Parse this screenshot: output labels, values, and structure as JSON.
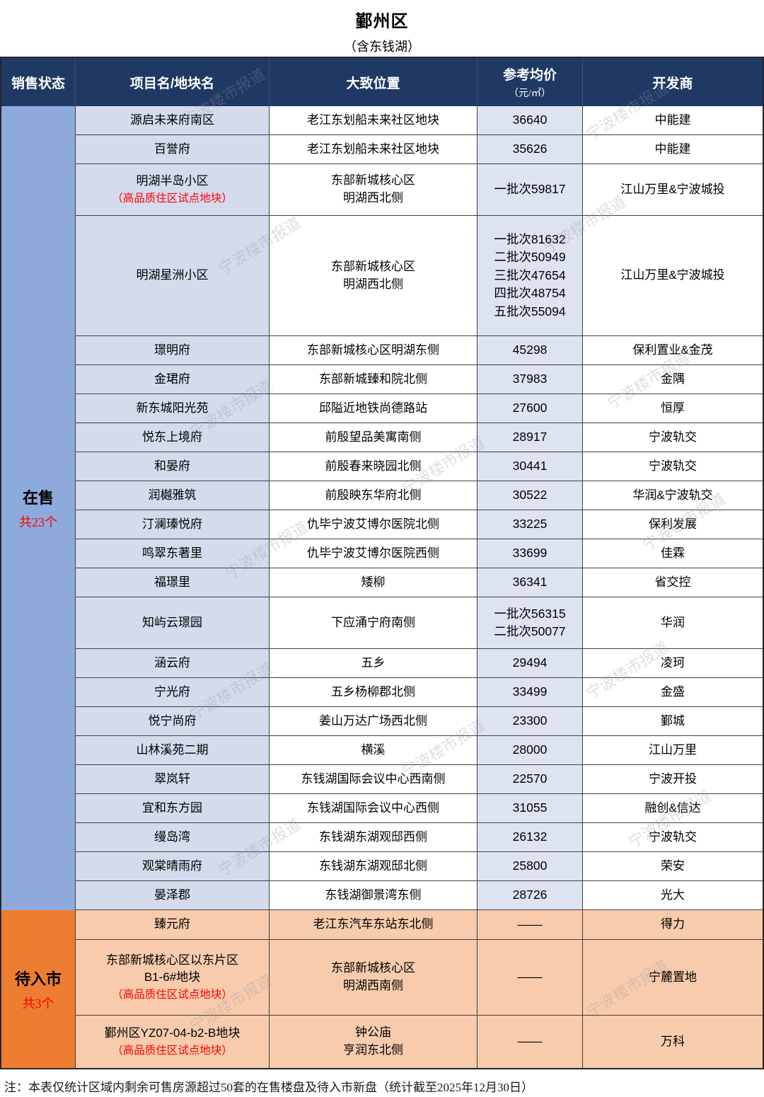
{
  "title": "鄞州区",
  "subtitle": "（含东钱湖）",
  "watermark": "宁波楼市报道",
  "columns": {
    "status": "销售状态",
    "name": "项目名/地块名",
    "location": "大致位置",
    "price": "参考均价",
    "price_unit": "（元/㎡）",
    "developer": "开发商"
  },
  "colors": {
    "header_navy": "#1F3864",
    "sidebar_blue": "#8EA9DB",
    "name_col_bg": "#D3DBED",
    "price_col_bg": "#DEE3F2",
    "sidebar_orange": "#ED7D31",
    "orange_row_bg": "#F8CBAD",
    "note_red": "#FF0000"
  },
  "groups": [
    {
      "status": "在售",
      "count_label": "共23个",
      "rows": [
        {
          "name": "源启未来府南区",
          "note": "",
          "location": "老江东划船未来社区地块",
          "price": "36640",
          "developer": "中能建"
        },
        {
          "name": "百誉府",
          "note": "",
          "location": "老江东划船未来社区地块",
          "price": "35626",
          "developer": "中能建"
        },
        {
          "name": "明湖半岛小区",
          "note": "（高品质住区试点地块）",
          "location": "东部新城核心区\n明湖西北侧",
          "price": "一批次59817",
          "developer": "江山万里&宁波城投"
        },
        {
          "name": "明湖星洲小区",
          "note": "",
          "location": "东部新城核心区\n明湖西北侧",
          "price": "一批次81632\n二批次50949\n三批次47654\n四批次48754\n五批次55094",
          "developer": "江山万里&宁波城投"
        },
        {
          "name": "璟明府",
          "note": "",
          "location": "东部新城核心区明湖东侧",
          "price": "45298",
          "developer": "保利置业&金茂"
        },
        {
          "name": "金珺府",
          "note": "",
          "location": "东部新城臻和院北侧",
          "price": "37983",
          "developer": "金隅"
        },
        {
          "name": "新东城阳光苑",
          "note": "",
          "location": "邱隘近地铁尚德路站",
          "price": "27600",
          "developer": "恒厚"
        },
        {
          "name": "悦东上境府",
          "note": "",
          "location": "前殷望品美寓南侧",
          "price": "28917",
          "developer": "宁波轨交"
        },
        {
          "name": "和晏府",
          "note": "",
          "location": "前殷春来晓园北侧",
          "price": "30441",
          "developer": "宁波轨交"
        },
        {
          "name": "润樾雅筑",
          "note": "",
          "location": "前殷映东华府北侧",
          "price": "30522",
          "developer": "华润&宁波轨交"
        },
        {
          "name": "汀澜瑧悦府",
          "note": "",
          "location": "仇毕宁波艾博尔医院北侧",
          "price": "33225",
          "developer": "保利发展"
        },
        {
          "name": "鸣翠东著里",
          "note": "",
          "location": "仇毕宁波艾博尔医院西侧",
          "price": "33699",
          "developer": "佳霖"
        },
        {
          "name": "福璟里",
          "note": "",
          "location": "矮柳",
          "price": "36341",
          "developer": "省交控"
        },
        {
          "name": "知屿云璟园",
          "note": "",
          "location": "下应涌宁府南侧",
          "price": "一批次56315\n二批次50077",
          "developer": "华润"
        },
        {
          "name": "涵云府",
          "note": "",
          "location": "五乡",
          "price": "29494",
          "developer": "凌珂"
        },
        {
          "name": "宁光府",
          "note": "",
          "location": "五乡杨柳郡北侧",
          "price": "33499",
          "developer": "金盛"
        },
        {
          "name": "悦宁尚府",
          "note": "",
          "location": "姜山万达广场西北侧",
          "price": "23300",
          "developer": "鄞城"
        },
        {
          "name": "山林溪苑二期",
          "note": "",
          "location": "横溪",
          "price": "28000",
          "developer": "江山万里"
        },
        {
          "name": "翠岚轩",
          "note": "",
          "location": "东钱湖国际会议中心西南侧",
          "price": "22570",
          "developer": "宁波开投"
        },
        {
          "name": "宜和东方园",
          "note": "",
          "location": "东钱湖国际会议中心西侧",
          "price": "31055",
          "developer": "融创&信达"
        },
        {
          "name": "缦岛湾",
          "note": "",
          "location": "东钱湖东湖观邸西侧",
          "price": "26132",
          "developer": "宁波轨交"
        },
        {
          "name": "观棠晴雨府",
          "note": "",
          "location": "东钱湖东湖观邸北侧",
          "price": "25800",
          "developer": "荣安"
        },
        {
          "name": "晏泽郡",
          "note": "",
          "location": "东钱湖御景湾东侧",
          "price": "28726",
          "developer": "光大"
        }
      ]
    },
    {
      "status": "待入市",
      "count_label": "共3个",
      "rows": [
        {
          "name": "臻元府",
          "note": "",
          "location": "老江东汽车东站东北侧",
          "price": "——",
          "developer": "得力"
        },
        {
          "name": "东部新城核心区以东片区\nB1-6#地块",
          "note": "（高品质住区试点地块）",
          "location": "东部新城核心区\n明湖西南侧",
          "price": "——",
          "developer": "宁麓置地"
        },
        {
          "name": "鄞州区YZ07-04-b2-B地块",
          "note": "（高品质住区试点地块）",
          "location": "钟公庙\n亨润东北侧",
          "price": "——",
          "developer": "万科"
        }
      ]
    }
  ],
  "footnote": "注：本表仅统计区域内剩余可售房源超过50套的在售楼盘及待入市新盘（统计截至2025年12月30日）"
}
